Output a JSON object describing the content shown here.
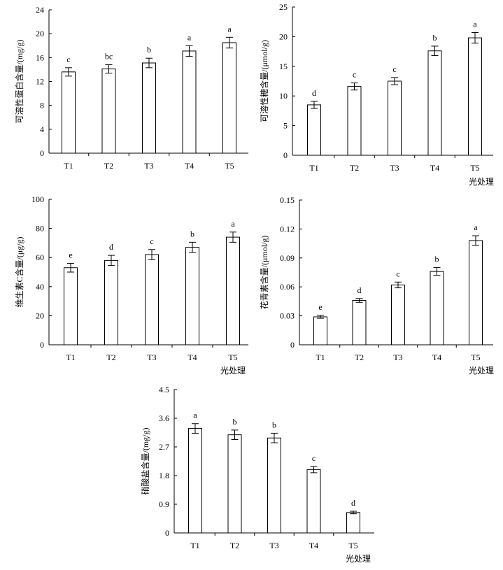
{
  "chart_data": [
    {
      "type": "bar",
      "ylabel": "可溶性蛋白含量/(mg/g)",
      "xlabel": "",
      "categories": [
        "T1",
        "T2",
        "T3",
        "T4",
        "T5"
      ],
      "values": [
        13.6,
        14.1,
        15.1,
        17.1,
        18.5
      ],
      "errors": [
        0.7,
        0.7,
        0.8,
        0.9,
        0.9
      ],
      "letters": [
        "c",
        "bc",
        "b",
        "a",
        "a"
      ],
      "yticks": [
        "0",
        "4",
        "8",
        "12",
        "16",
        "20",
        "24"
      ],
      "ylim": [
        0,
        24
      ]
    },
    {
      "type": "bar",
      "ylabel": "可溶性糖含量/(μmol/g)",
      "xlabel": "光处理",
      "categories": [
        "T1",
        "T2",
        "T3",
        "T4",
        "T5"
      ],
      "values": [
        8.5,
        11.6,
        12.5,
        17.6,
        19.8
      ],
      "errors": [
        0.6,
        0.6,
        0.6,
        0.8,
        0.9
      ],
      "letters": [
        "d",
        "c",
        "c",
        "b",
        "a"
      ],
      "yticks": [
        "0",
        "5",
        "10",
        "15",
        "20",
        "25"
      ],
      "ylim": [
        0,
        25
      ]
    },
    {
      "type": "bar",
      "ylabel": "维生素C含量/(μg/g)",
      "xlabel": "光处理",
      "categories": [
        "T1",
        "T2",
        "T3",
        "T4",
        "T5"
      ],
      "values": [
        53,
        58,
        62,
        67,
        74
      ],
      "errors": [
        3,
        3.5,
        3.5,
        3.5,
        3.5
      ],
      "letters": [
        "e",
        "d",
        "c",
        "b",
        "a"
      ],
      "yticks": [
        "0",
        "20",
        "40",
        "60",
        "80",
        "100"
      ],
      "ylim": [
        0,
        100
      ]
    },
    {
      "type": "bar",
      "ylabel": "花青素含量/(μmol/g)",
      "xlabel": "光处理",
      "categories": [
        "T1",
        "T2",
        "T3",
        "T4",
        "T5"
      ],
      "values": [
        0.029,
        0.046,
        0.062,
        0.076,
        0.108
      ],
      "errors": [
        0.0015,
        0.002,
        0.003,
        0.004,
        0.005
      ],
      "letters": [
        "e",
        "d",
        "c",
        "b",
        "a"
      ],
      "yticks": [
        "0",
        "0.03",
        "0.06",
        "0.09",
        "0.12",
        "0.15"
      ],
      "ylim": [
        0,
        0.15
      ]
    },
    {
      "type": "bar",
      "ylabel": "硝酸盐含量/(mg/g)",
      "xlabel": "光处理",
      "categories": [
        "T1",
        "T2",
        "T3",
        "T4",
        "T5"
      ],
      "values": [
        3.28,
        3.08,
        2.98,
        1.99,
        0.64
      ],
      "errors": [
        0.15,
        0.15,
        0.15,
        0.1,
        0.04
      ],
      "letters": [
        "a",
        "b",
        "b",
        "c",
        "d"
      ],
      "yticks": [
        "0",
        "0.9",
        "1.8",
        "2.7",
        "3.6",
        "4.5"
      ],
      "ylim": [
        0,
        4.5
      ]
    }
  ]
}
